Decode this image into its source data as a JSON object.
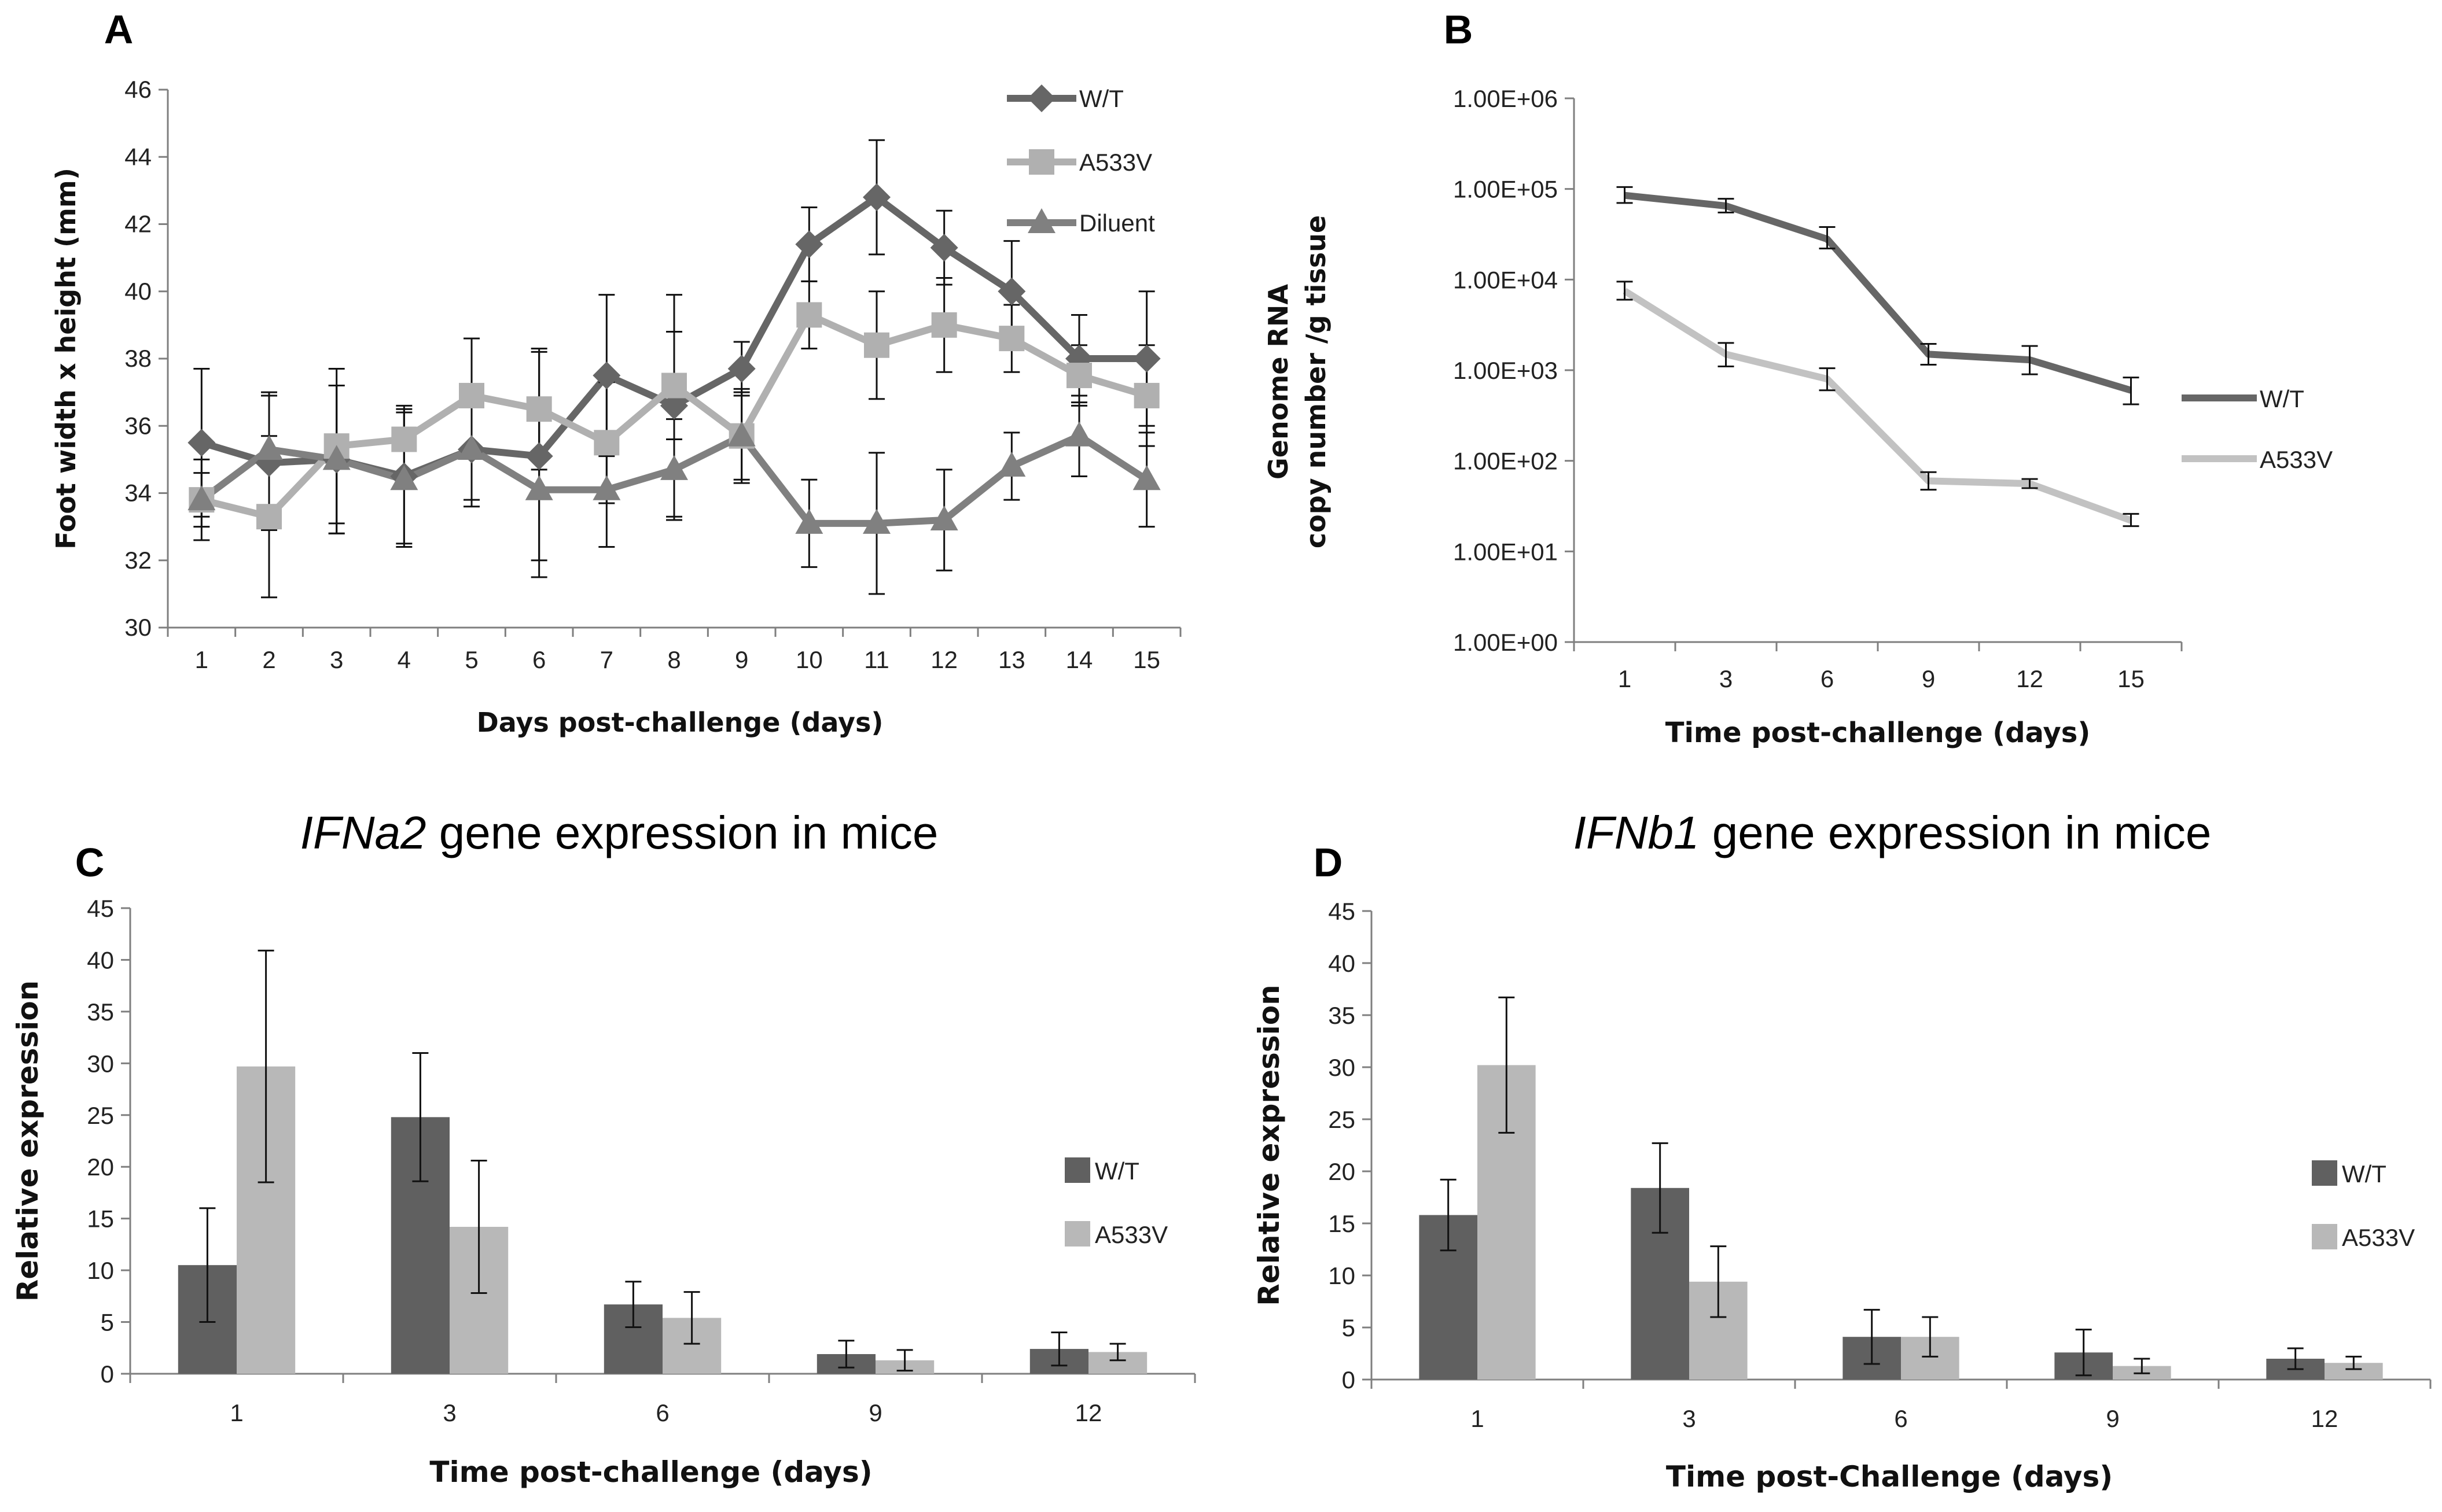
{
  "chart_data": [
    {
      "id": "A",
      "type": "line",
      "panel_label": "A",
      "xlabel": "Days post-challenge (days)",
      "ylabel": "Foot width x height (mm)",
      "categories": [
        "1",
        "2",
        "3",
        "4",
        "5",
        "6",
        "7",
        "8",
        "9",
        "10",
        "11",
        "12",
        "13",
        "14",
        "15"
      ],
      "ylim": [
        30,
        46
      ],
      "yticks": [
        "30",
        "32",
        "34",
        "36",
        "38",
        "40",
        "42",
        "44",
        "46"
      ],
      "legend_position": "top-right",
      "series": [
        {
          "name": "W/T",
          "color": "#666666",
          "marker": "diamond",
          "values": [
            35.5,
            34.9,
            35.0,
            34.5,
            35.3,
            35.1,
            37.5,
            36.6,
            37.7,
            41.4,
            42.8,
            41.3,
            40.0,
            38.0,
            38.0
          ],
          "errors": [
            2.2,
            2.0,
            2.2,
            2.0,
            1.7,
            3.1,
            2.4,
            3.3,
            0.8,
            1.1,
            1.7,
            1.1,
            1.5,
            1.3,
            2.0
          ]
        },
        {
          "name": "A533V",
          "color": "#b0b0b0",
          "marker": "square",
          "values": [
            33.8,
            33.3,
            35.4,
            35.6,
            36.9,
            36.5,
            35.5,
            37.2,
            35.7,
            39.3,
            38.4,
            39.0,
            38.6,
            37.5,
            36.9
          ],
          "errors": [
            0.8,
            2.4,
            2.3,
            1.0,
            1.7,
            1.8,
            1.8,
            1.6,
            1.3,
            1.0,
            1.6,
            1.4,
            1.0,
            0.9,
            1.5
          ]
        },
        {
          "name": "Diluent",
          "color": "#808080",
          "marker": "triangle",
          "values": [
            33.8,
            35.3,
            35.0,
            34.4,
            35.3,
            34.1,
            34.1,
            34.7,
            35.7,
            33.1,
            33.1,
            33.2,
            34.8,
            35.7,
            34.4
          ],
          "errors": [
            1.2,
            1.7,
            2.2,
            2.0,
            1.5,
            2.6,
            1.7,
            1.5,
            1.4,
            1.3,
            2.1,
            1.5,
            1.0,
            1.2,
            1.4
          ]
        }
      ]
    },
    {
      "id": "B",
      "type": "line",
      "panel_label": "B",
      "xlabel": "Time post-challenge (days)",
      "ylabel_line1": "Genome RNA",
      "ylabel_line2": "copy number /g tissue",
      "categories": [
        "1",
        "3",
        "6",
        "9",
        "12",
        "15"
      ],
      "yscale": "log",
      "ylim": [
        1,
        1000000
      ],
      "yticks": [
        "1.00E+00",
        "1.00E+01",
        "1.00E+02",
        "1.00E+03",
        "1.00E+04",
        "1.00E+05",
        "1.00E+06"
      ],
      "legend_position": "right",
      "series": [
        {
          "name": "W/T",
          "color": "#666666",
          "values": [
            85000,
            65000,
            28000,
            1500,
            1300,
            600
          ],
          "err_low": [
            70000,
            55000,
            22000,
            1150,
            900,
            420
          ],
          "err_high": [
            105000,
            78000,
            38000,
            1950,
            1850,
            830
          ]
        },
        {
          "name": "A533V",
          "color": "#c2c2c2",
          "values": [
            7500,
            1500,
            800,
            60,
            56,
            22
          ],
          "err_low": [
            6000,
            1100,
            600,
            48,
            50,
            19
          ],
          "err_high": [
            9500,
            2000,
            1050,
            75,
            63,
            26
          ]
        }
      ]
    },
    {
      "id": "C",
      "type": "bar",
      "panel_label": "C",
      "title_gene": "IFNa2",
      "title_rest": " gene expression in mice",
      "xlabel": "Time post-challenge (days)",
      "ylabel": "Relative expression",
      "categories": [
        "1",
        "3",
        "6",
        "9",
        "12"
      ],
      "ylim": [
        0,
        45
      ],
      "yticks": [
        "0",
        "5",
        "10",
        "15",
        "20",
        "25",
        "30",
        "35",
        "40",
        "45"
      ],
      "legend_position": "right",
      "series": [
        {
          "name": "W/T",
          "color": "#606060",
          "values": [
            10.5,
            24.8,
            6.7,
            1.9,
            2.4
          ],
          "errors": [
            5.5,
            6.2,
            2.2,
            1.3,
            1.6
          ]
        },
        {
          "name": "A533V",
          "color": "#b8b8b8",
          "values": [
            29.7,
            14.2,
            5.4,
            1.3,
            2.1
          ],
          "errors": [
            11.2,
            6.4,
            2.5,
            1.0,
            0.8
          ]
        }
      ]
    },
    {
      "id": "D",
      "type": "bar",
      "panel_label": "D",
      "title_gene": "IFNb1",
      "title_rest": " gene expression in mice",
      "xlabel": "Time post-Challenge (days)",
      "ylabel": "Relative expression",
      "categories": [
        "1",
        "3",
        "6",
        "9",
        "12"
      ],
      "ylim": [
        0,
        45
      ],
      "yticks": [
        "0",
        "5",
        "10",
        "15",
        "20",
        "25",
        "30",
        "35",
        "40",
        "45"
      ],
      "legend_position": "right",
      "series": [
        {
          "name": "W/T",
          "color": "#606060",
          "values": [
            15.8,
            18.4,
            4.1,
            2.6,
            2.0
          ],
          "errors": [
            3.4,
            4.3,
            2.6,
            2.2,
            1.0
          ]
        },
        {
          "name": "A533V",
          "color": "#b8b8b8",
          "values": [
            30.2,
            9.4,
            4.1,
            1.3,
            1.6
          ],
          "errors": [
            6.5,
            3.4,
            1.9,
            0.7,
            0.6
          ]
        }
      ]
    }
  ]
}
